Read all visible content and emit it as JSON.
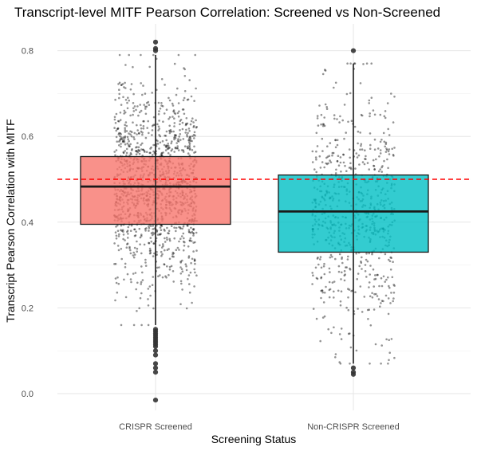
{
  "chart_data": {
    "type": "box",
    "title": "Transcript-level MITF Pearson Correlation: Screened vs Non-Screened",
    "xlabel": "Screening Status",
    "ylabel": "Transcript Pearson Correlation with MITF",
    "ylim": [
      -0.02,
      0.83
    ],
    "yticks": [
      "0.0",
      "0.2",
      "0.4",
      "0.6",
      "0.8"
    ],
    "grid": true,
    "reference_line": {
      "y": 0.5,
      "color": "#ff0000",
      "style": "dashed"
    },
    "series": [
      {
        "category": "CRISPR Screened",
        "color": "#f8766d",
        "box": {
          "q1": 0.395,
          "median": 0.483,
          "q3": 0.553,
          "whisker_low": 0.16,
          "whisker_high": 0.79
        },
        "outliers_high": [
          0.8,
          0.805,
          0.82
        ],
        "outliers_low": [
          0.15,
          0.145,
          0.14,
          0.135,
          0.13,
          0.125,
          0.12,
          0.115,
          0.11,
          0.1,
          0.09,
          0.07,
          0.06,
          0.05,
          -0.015
        ],
        "jitter_points_approx": 1300
      },
      {
        "category": "Non-CRISPR Screened",
        "color": "#00bfc4",
        "box": {
          "q1": 0.33,
          "median": 0.425,
          "q3": 0.51,
          "whisker_low": 0.07,
          "whisker_high": 0.77
        },
        "outliers_high": [
          0.8
        ],
        "outliers_low": [
          0.06,
          0.05,
          0.045
        ],
        "jitter_points_approx": 700
      }
    ]
  }
}
